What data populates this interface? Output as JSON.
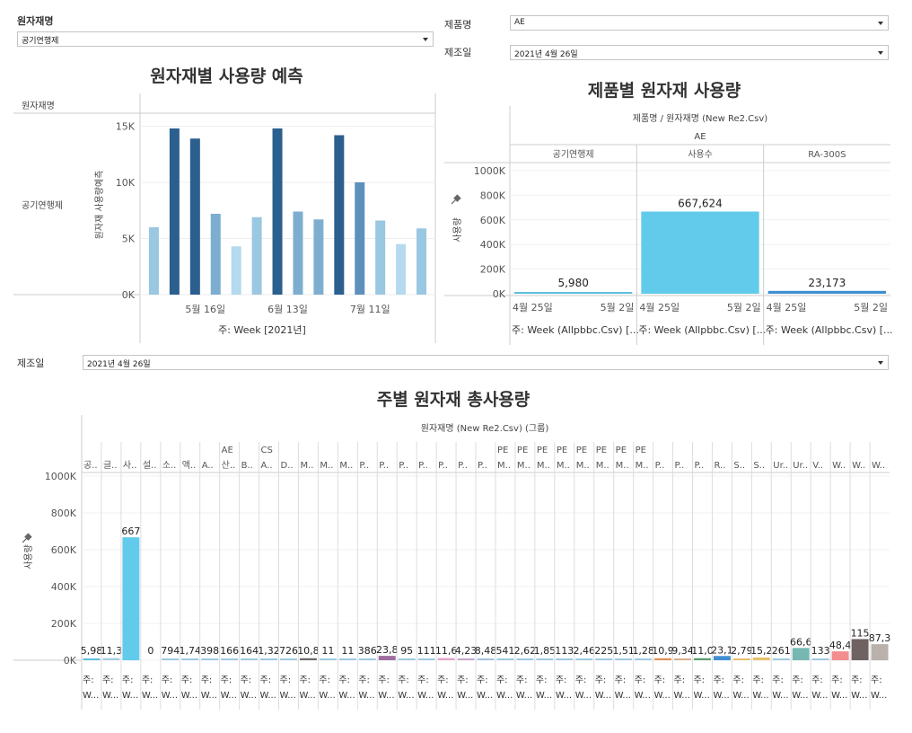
{
  "filters": {
    "material": {
      "label": "원자재명",
      "value": "공기연행제"
    },
    "product": {
      "label": "제품명",
      "value": "AE"
    },
    "date_top": {
      "label": "제조일",
      "value": "2021년 4월 26일"
    },
    "date_bottom": {
      "label": "제조일",
      "value": "2021년 4월 26일"
    }
  },
  "icons": {
    "pin": "pin-icon",
    "dropdown": "chevron-down-icon"
  },
  "chart_data": [
    {
      "type": "bar",
      "title": "원자재별 사용량 예측",
      "row_header": "원자재명",
      "row_label": "공기연행제",
      "ylabel": "원자재 사용량예측",
      "xlabel": "주: Week [2021년]",
      "ylim": [
        0,
        16000
      ],
      "yticks": [
        {
          "v": 0,
          "t": "0K"
        },
        {
          "v": 5000,
          "t": "5K"
        },
        {
          "v": 10000,
          "t": "10K"
        },
        {
          "v": 15000,
          "t": "15K"
        }
      ],
      "xticks": [
        {
          "i": 2.5,
          "t": "5월 16일"
        },
        {
          "i": 6.5,
          "t": "6월 13일"
        },
        {
          "i": 10.5,
          "t": "7월 11일"
        }
      ],
      "values": [
        6000,
        14800,
        13900,
        7200,
        4300,
        6900,
        14800,
        7400,
        6700,
        14200,
        10000,
        6600,
        4500,
        5900
      ],
      "colors": [
        "#9ac7e1",
        "#2b5f8e",
        "#2b5f8e",
        "#7eaecf",
        "#b5d9ee",
        "#9ac7e1",
        "#2b5f8e",
        "#7eaecf",
        "#7eaecf",
        "#2b5f8e",
        "#5e90bc",
        "#9ac7e1",
        "#b5d9ee",
        "#9ac7e1"
      ]
    },
    {
      "type": "bar",
      "title": "제품별 원자재 사용량",
      "header": "제품명 / 원자재명 (New Re2.Csv)",
      "group": "AE",
      "ylabel": "사용량",
      "ylim": [
        0,
        1000000
      ],
      "yticks": [
        {
          "v": 0,
          "t": "0K"
        },
        {
          "v": 200000,
          "t": "200K"
        },
        {
          "v": 400000,
          "t": "400K"
        },
        {
          "v": 600000,
          "t": "600K"
        },
        {
          "v": 800000,
          "t": "800K"
        },
        {
          "v": 1000000,
          "t": "1000K"
        }
      ],
      "panels": [
        {
          "name": "공기연행제",
          "value": 5980,
          "label": "5,980",
          "color": "#5bc0de"
        },
        {
          "name": "사용수",
          "value": 667624,
          "label": "667,624",
          "color": "#62cbeb"
        },
        {
          "name": "RA-300S",
          "value": 23173,
          "label": "23,173",
          "color": "#3f8fd2"
        }
      ],
      "xtick_left": "4월 25일",
      "xtick_right": "5월 2일",
      "xlabel": "주: Week (Allpbbc.Csv) [..."
    },
    {
      "type": "bar",
      "title": "주별 원자재 총사용량",
      "header": "원자재명 (New Re2.Csv) (그룹)",
      "ylabel": "사용량",
      "ylim": [
        0,
        1000000
      ],
      "yticks": [
        {
          "v": 0,
          "t": "0K"
        },
        {
          "v": 200000,
          "t": "200K"
        },
        {
          "v": 400000,
          "t": "400K"
        },
        {
          "v": 600000,
          "t": "600K"
        },
        {
          "v": 800000,
          "t": "800K"
        },
        {
          "v": 1000000,
          "t": "1000K"
        }
      ],
      "xlabel_line1": "주:",
      "xlabel_line2": "W...",
      "categories": [
        {
          "l1": "",
          "l2": "공..",
          "value": 5980,
          "label": "5,98",
          "color": "#5bc0de"
        },
        {
          "l1": "",
          "l2": "글..",
          "value": 11300,
          "label": "11,3",
          "color": "#a6cde0"
        },
        {
          "l1": "",
          "l2": "사..",
          "value": 667624,
          "label": "667",
          "color": "#62cbeb"
        },
        {
          "l1": "",
          "l2": "설..",
          "value": 0,
          "label": "0",
          "color": "#9ecae1"
        },
        {
          "l1": "",
          "l2": "소..",
          "value": 794,
          "label": "794",
          "color": "#9ecae1"
        },
        {
          "l1": "",
          "l2": "액..",
          "value": 1740,
          "label": "1,74",
          "color": "#9ecae1"
        },
        {
          "l1": "",
          "l2": "A..",
          "value": 398,
          "label": "398",
          "color": "#9ecae1"
        },
        {
          "l1": "AE",
          "l2": "산..",
          "value": 166,
          "label": "166",
          "color": "#9ecae1"
        },
        {
          "l1": "",
          "l2": "B..",
          "value": 164,
          "label": "164",
          "color": "#9ecae1"
        },
        {
          "l1": "CS",
          "l2": "A..",
          "value": 1320,
          "label": "1,32",
          "color": "#9ecae1"
        },
        {
          "l1": "",
          "l2": "D..",
          "value": 726,
          "label": "726",
          "color": "#9ecae1"
        },
        {
          "l1": "",
          "l2": "M..",
          "value": 10800,
          "label": "10,8",
          "color": "#6b6b6b"
        },
        {
          "l1": "",
          "l2": "M..",
          "value": 11,
          "label": "11",
          "color": "#9ecae1"
        },
        {
          "l1": "",
          "l2": "M..",
          "value": 11,
          "label": "11",
          "color": "#9ecae1"
        },
        {
          "l1": "",
          "l2": "P..",
          "value": 386,
          "label": "386",
          "color": "#9ecae1"
        },
        {
          "l1": "",
          "l2": "P..",
          "value": 23800,
          "label": "23,8",
          "color": "#9e6c9e"
        },
        {
          "l1": "",
          "l2": "P..",
          "value": 95,
          "label": "95",
          "color": "#9ecae1"
        },
        {
          "l1": "",
          "l2": "P..",
          "value": 111,
          "label": "111",
          "color": "#9ecae1"
        },
        {
          "l1": "",
          "l2": "P..",
          "value": 11600,
          "label": "11,6",
          "color": "#e0a5c8"
        },
        {
          "l1": "",
          "l2": "P..",
          "value": 4230,
          "label": "4,23",
          "color": "#c8a6c8"
        },
        {
          "l1": "",
          "l2": "P..",
          "value": 8480,
          "label": "8,48",
          "color": "#a6c3e0"
        },
        {
          "l1": "PE",
          "l2": "M..",
          "value": 541,
          "label": "541",
          "color": "#9ecae1"
        },
        {
          "l1": "PE",
          "l2": "M..",
          "value": 2620,
          "label": "2,62",
          "color": "#9ecae1"
        },
        {
          "l1": "PE",
          "l2": "M..",
          "value": 1850,
          "label": "1,85",
          "color": "#9ecae1"
        },
        {
          "l1": "PE",
          "l2": "M..",
          "value": 113,
          "label": "113",
          "color": "#9ecae1"
        },
        {
          "l1": "PE",
          "l2": "M..",
          "value": 2460,
          "label": "2,46",
          "color": "#9ecae1"
        },
        {
          "l1": "PE",
          "l2": "M..",
          "value": 225,
          "label": "225",
          "color": "#9ecae1"
        },
        {
          "l1": "PE",
          "l2": "M..",
          "value": 1510,
          "label": "1,51",
          "color": "#9ecae1"
        },
        {
          "l1": "PE",
          "l2": "M..",
          "value": 1280,
          "label": "1,28",
          "color": "#9ecae1"
        },
        {
          "l1": "",
          "l2": "P..",
          "value": 10900,
          "label": "10,9",
          "color": "#e0915a"
        },
        {
          "l1": "",
          "l2": "P..",
          "value": 9340,
          "label": "9,34",
          "color": "#d9b08c"
        },
        {
          "l1": "",
          "l2": "P..",
          "value": 11000,
          "label": "11,0",
          "color": "#5a9e6f"
        },
        {
          "l1": "",
          "l2": "R..",
          "value": 23100,
          "label": "23,1",
          "color": "#3f8fd2"
        },
        {
          "l1": "",
          "l2": "S..",
          "value": 2790,
          "label": "2,79",
          "color": "#e6c06a"
        },
        {
          "l1": "",
          "l2": "S..",
          "value": 15200,
          "label": "15,2",
          "color": "#e6c06a"
        },
        {
          "l1": "",
          "l2": "Ur..",
          "value": 261,
          "label": "261",
          "color": "#9ecae1"
        },
        {
          "l1": "",
          "l2": "Ur..",
          "value": 66600,
          "label": "66,6",
          "color": "#76b7b2"
        },
        {
          "l1": "",
          "l2": "V..",
          "value": 133,
          "label": "133",
          "color": "#9ecae1"
        },
        {
          "l1": "",
          "l2": "W..",
          "value": 48400,
          "label": "48,4",
          "color": "#f28e8e"
        },
        {
          "l1": "",
          "l2": "W..",
          "value": 115000,
          "label": "115",
          "color": "#6e6262"
        },
        {
          "l1": "",
          "l2": "W..",
          "value": 87300,
          "label": "87,3",
          "color": "#bab0ac"
        }
      ]
    }
  ]
}
